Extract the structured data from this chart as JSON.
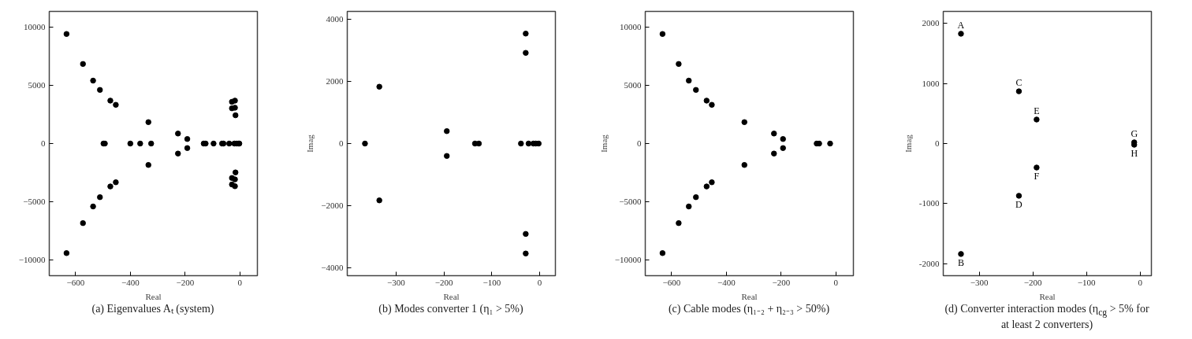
{
  "chart_data": [
    {
      "type": "scatter",
      "title": "(a) Eigenvalues Aₜ (system)",
      "xlabel": "Real",
      "color": "#000000",
      "marker": "circle",
      "x": [
        -633,
        -573,
        -536,
        -511,
        -473,
        -453,
        -633,
        -573,
        -536,
        -511,
        -473,
        -453,
        -498,
        -493,
        -400,
        -364,
        -334,
        -334,
        -324,
        -226,
        -226,
        -192,
        -192,
        -132,
        -125,
        -96,
        -65,
        -60,
        -39,
        -20,
        -12,
        -6,
        -2,
        -29,
        -18,
        -29,
        -18,
        -16,
        -16,
        -29,
        -18,
        -29,
        -18
      ],
      "values": [
        9420,
        6840,
        5410,
        4610,
        3690,
        3330,
        -9420,
        -6840,
        -5410,
        -4610,
        -3690,
        -3330,
        0,
        0,
        0,
        0,
        1840,
        -1840,
        0,
        860,
        -860,
        390,
        -390,
        0,
        0,
        0,
        0,
        0,
        0,
        0,
        0,
        0,
        0,
        3590,
        3690,
        3030,
        3080,
        2430,
        -2480,
        -2960,
        -3080,
        -3520,
        -3670
      ],
      "xlim": [
        -696,
        64
      ],
      "ylim": [
        -11360,
        11360
      ],
      "xticks": [
        {
          "value": -600,
          "label": "−600"
        },
        {
          "value": -400,
          "label": "−400"
        },
        {
          "value": -200,
          "label": "−200"
        },
        {
          "value": 0,
          "label": "0"
        }
      ],
      "yticks": [
        {
          "value": -10000,
          "label": "−10000"
        },
        {
          "value": -5000,
          "label": "−5000"
        },
        0,
        5000,
        10000
      ]
    },
    {
      "type": "scatter",
      "title": "(b) Modes converter 1 (η₁ > 5%)",
      "xlabel": "Real",
      "ylabel": "Imag",
      "color": "#000000",
      "marker": "circle",
      "x": [
        -365,
        -335,
        -335,
        -194,
        -194,
        -135,
        -127,
        -39,
        -23,
        -13,
        -8,
        -2,
        -29,
        -29,
        -29,
        -29
      ],
      "values": [
        0,
        1830,
        -1830,
        400,
        -400,
        0,
        0,
        0,
        0,
        0,
        0,
        0,
        3540,
        2920,
        -2910,
        -3540
      ],
      "xlim": [
        -402,
        33
      ],
      "ylim": [
        -4255,
        4255
      ],
      "xticks": [
        {
          "value": -300,
          "label": "−300"
        },
        {
          "value": -200,
          "label": "−200"
        },
        {
          "value": -100,
          "label": "−100"
        },
        {
          "value": 0,
          "label": "0"
        }
      ],
      "yticks": [
        {
          "value": -4000,
          "label": "−4000"
        },
        {
          "value": -2000,
          "label": "−2000"
        },
        0,
        2000,
        4000
      ]
    },
    {
      "type": "scatter",
      "title": "(c) Cable modes (η₁₋₂ + η₂₋₃ > 50%)",
      "xlabel": "Real",
      "ylabel": "Imag",
      "color": "#000000",
      "marker": "circle",
      "x": [
        -633,
        -574,
        -537,
        -511,
        -472,
        -453,
        -334,
        -226,
        -193,
        -633,
        -574,
        -537,
        -511,
        -472,
        -453,
        -334,
        -226,
        -193,
        -70,
        -61,
        -21
      ],
      "values": [
        9420,
        6840,
        5410,
        4610,
        3690,
        3330,
        1840,
        860,
        390,
        -9420,
        -6840,
        -5410,
        -4610,
        -3690,
        -3330,
        -1840,
        -860,
        -390,
        0,
        0,
        0
      ],
      "xlim": [
        -696,
        64
      ],
      "ylim": [
        -11360,
        11360
      ],
      "xticks": [
        {
          "value": -600,
          "label": "−600"
        },
        {
          "value": -400,
          "label": "−400"
        },
        {
          "value": -200,
          "label": "−200"
        },
        {
          "value": 0,
          "label": "0"
        }
      ],
      "yticks": [
        {
          "value": -10000,
          "label": "−10000"
        },
        {
          "value": -5000,
          "label": "−5000"
        },
        0,
        5000,
        10000
      ]
    },
    {
      "type": "scatter",
      "title": "(d) Converter interaction modes (η$_{cg}$ > 5% for at least 2 converters)",
      "xlabel": "Real",
      "ylabel": "Imag",
      "color": "#000000",
      "marker": "circle",
      "x": [
        -334,
        -334,
        -226,
        -226,
        -193,
        -193,
        -11,
        -11
      ],
      "values": [
        1830,
        -1840,
        870,
        -870,
        400,
        -400,
        20,
        -20
      ],
      "xlim": [
        -367,
        21
      ],
      "ylim": [
        -2202,
        2202
      ],
      "xticks": [
        {
          "value": -300,
          "label": "−300"
        },
        {
          "value": -200,
          "label": "−200"
        },
        {
          "value": -100,
          "label": "−100"
        },
        {
          "value": 0,
          "label": "0"
        }
      ],
      "yticks": [
        -2000,
        -1000,
        0,
        1000,
        2000
      ],
      "annotations": [
        {
          "text": "A",
          "x": -334,
          "y": 1830
        },
        {
          "text": "B",
          "x": -334,
          "y": -1840
        },
        {
          "text": "C",
          "x": -226,
          "y": 870
        },
        {
          "text": "D",
          "x": -226,
          "y": -870
        },
        {
          "text": "E",
          "x": -193,
          "y": 400
        },
        {
          "text": "F",
          "x": -193,
          "y": -400
        },
        {
          "text": "G",
          "x": -11,
          "y": 20
        },
        {
          "text": "H",
          "x": -11,
          "y": -20
        }
      ]
    }
  ]
}
